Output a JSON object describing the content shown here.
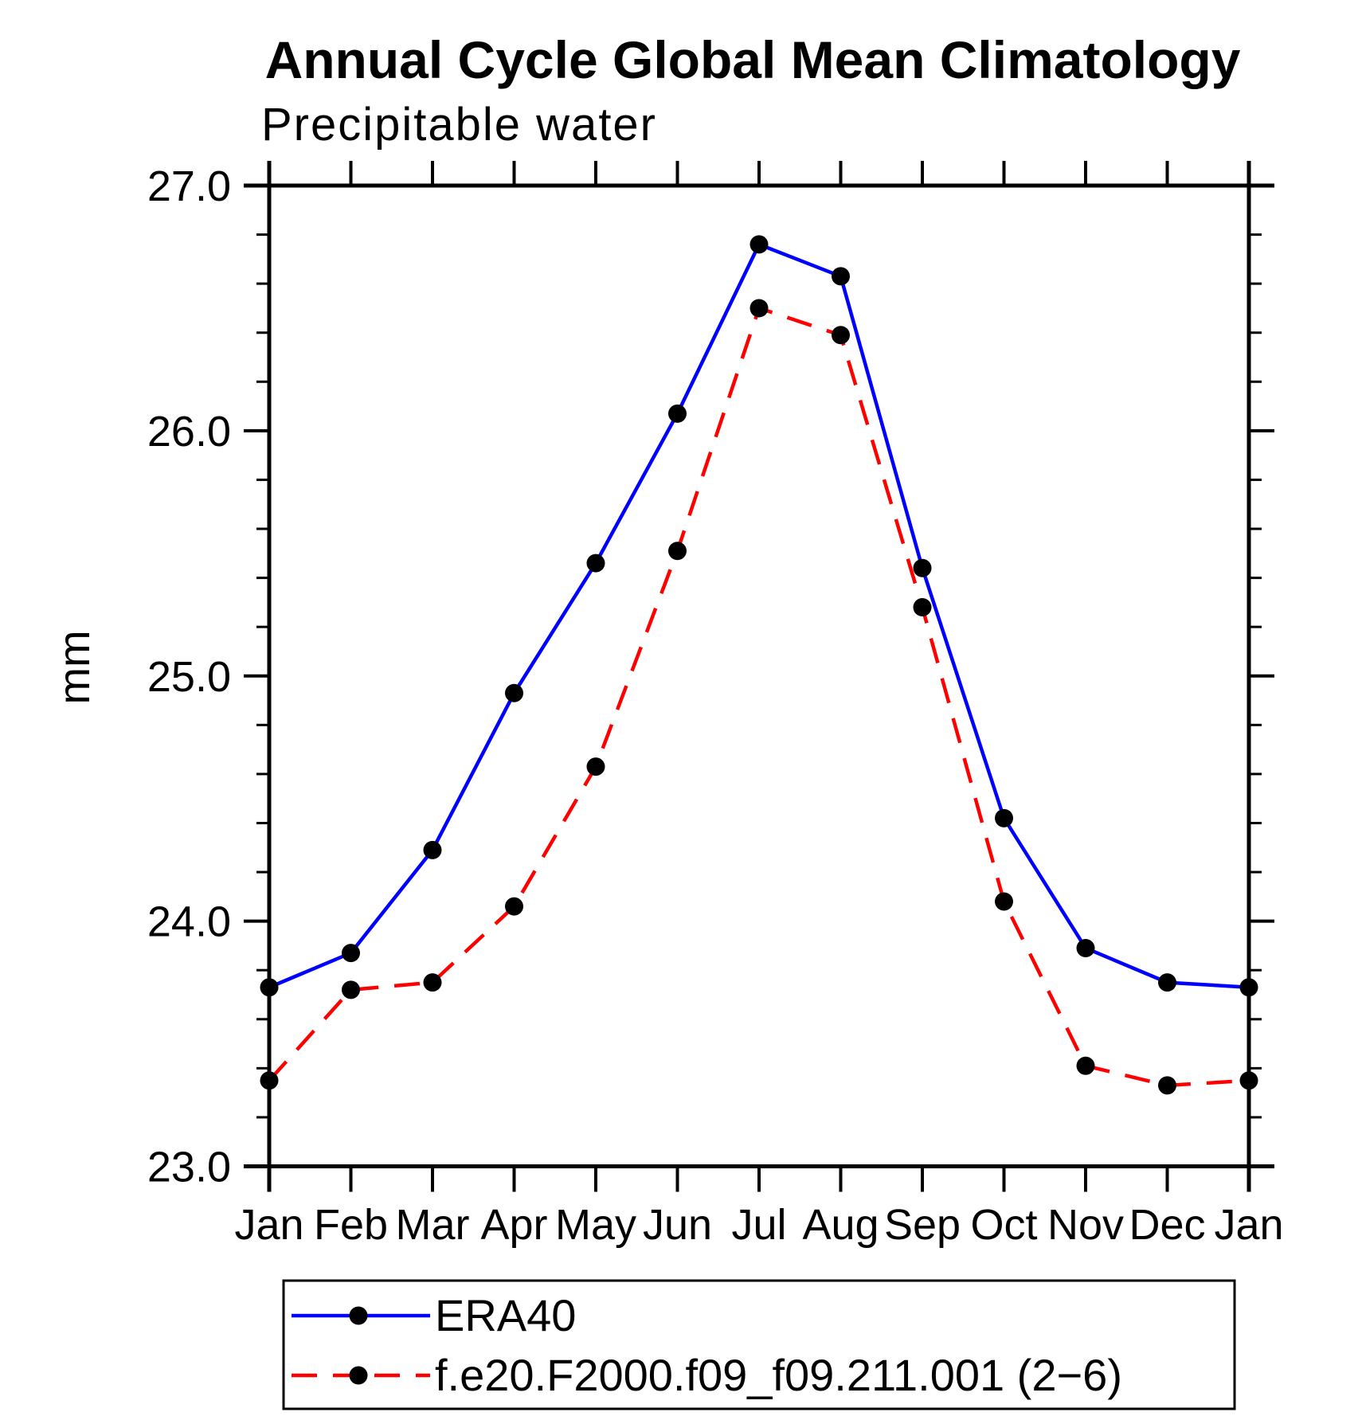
{
  "title": "Annual Cycle Global Mean Climatology",
  "subtitle": "Precipitable water",
  "y_axis": {
    "label": "mm"
  },
  "chart_data": {
    "type": "line",
    "title": "Annual Cycle Global Mean Climatology",
    "subtitle": "Precipitable water",
    "xlabel": "",
    "ylabel": "mm",
    "ylim": [
      23.0,
      27.0
    ],
    "ytick_major_labels": [
      "23.0",
      "24.0",
      "25.0",
      "26.0",
      "27.0"
    ],
    "ytick_major_values": [
      23.0,
      24.0,
      25.0,
      26.0,
      27.0
    ],
    "ytick_minor_step": 0.2,
    "grid": false,
    "legend_position": "bottom",
    "categories": [
      "Jan",
      "Feb",
      "Mar",
      "Apr",
      "May",
      "Jun",
      "Jul",
      "Aug",
      "Sep",
      "Oct",
      "Nov",
      "Dec",
      "Jan"
    ],
    "series": [
      {
        "name": "ERA40",
        "color": "#0000ff",
        "line_style": "solid",
        "marker": "circle",
        "marker_color": "#000000",
        "values": [
          23.73,
          23.87,
          24.29,
          24.93,
          25.46,
          26.07,
          26.76,
          26.63,
          25.44,
          24.42,
          23.89,
          23.75,
          23.73
        ]
      },
      {
        "name": "f.e20.F2000.f09_f09.211.001 (2−6)",
        "color": "#ff0000",
        "line_style": "dashed",
        "marker": "circle",
        "marker_color": "#000000",
        "values": [
          23.35,
          23.72,
          23.75,
          24.06,
          24.63,
          25.51,
          26.5,
          26.39,
          25.28,
          24.08,
          23.41,
          23.33,
          23.35
        ]
      }
    ]
  }
}
